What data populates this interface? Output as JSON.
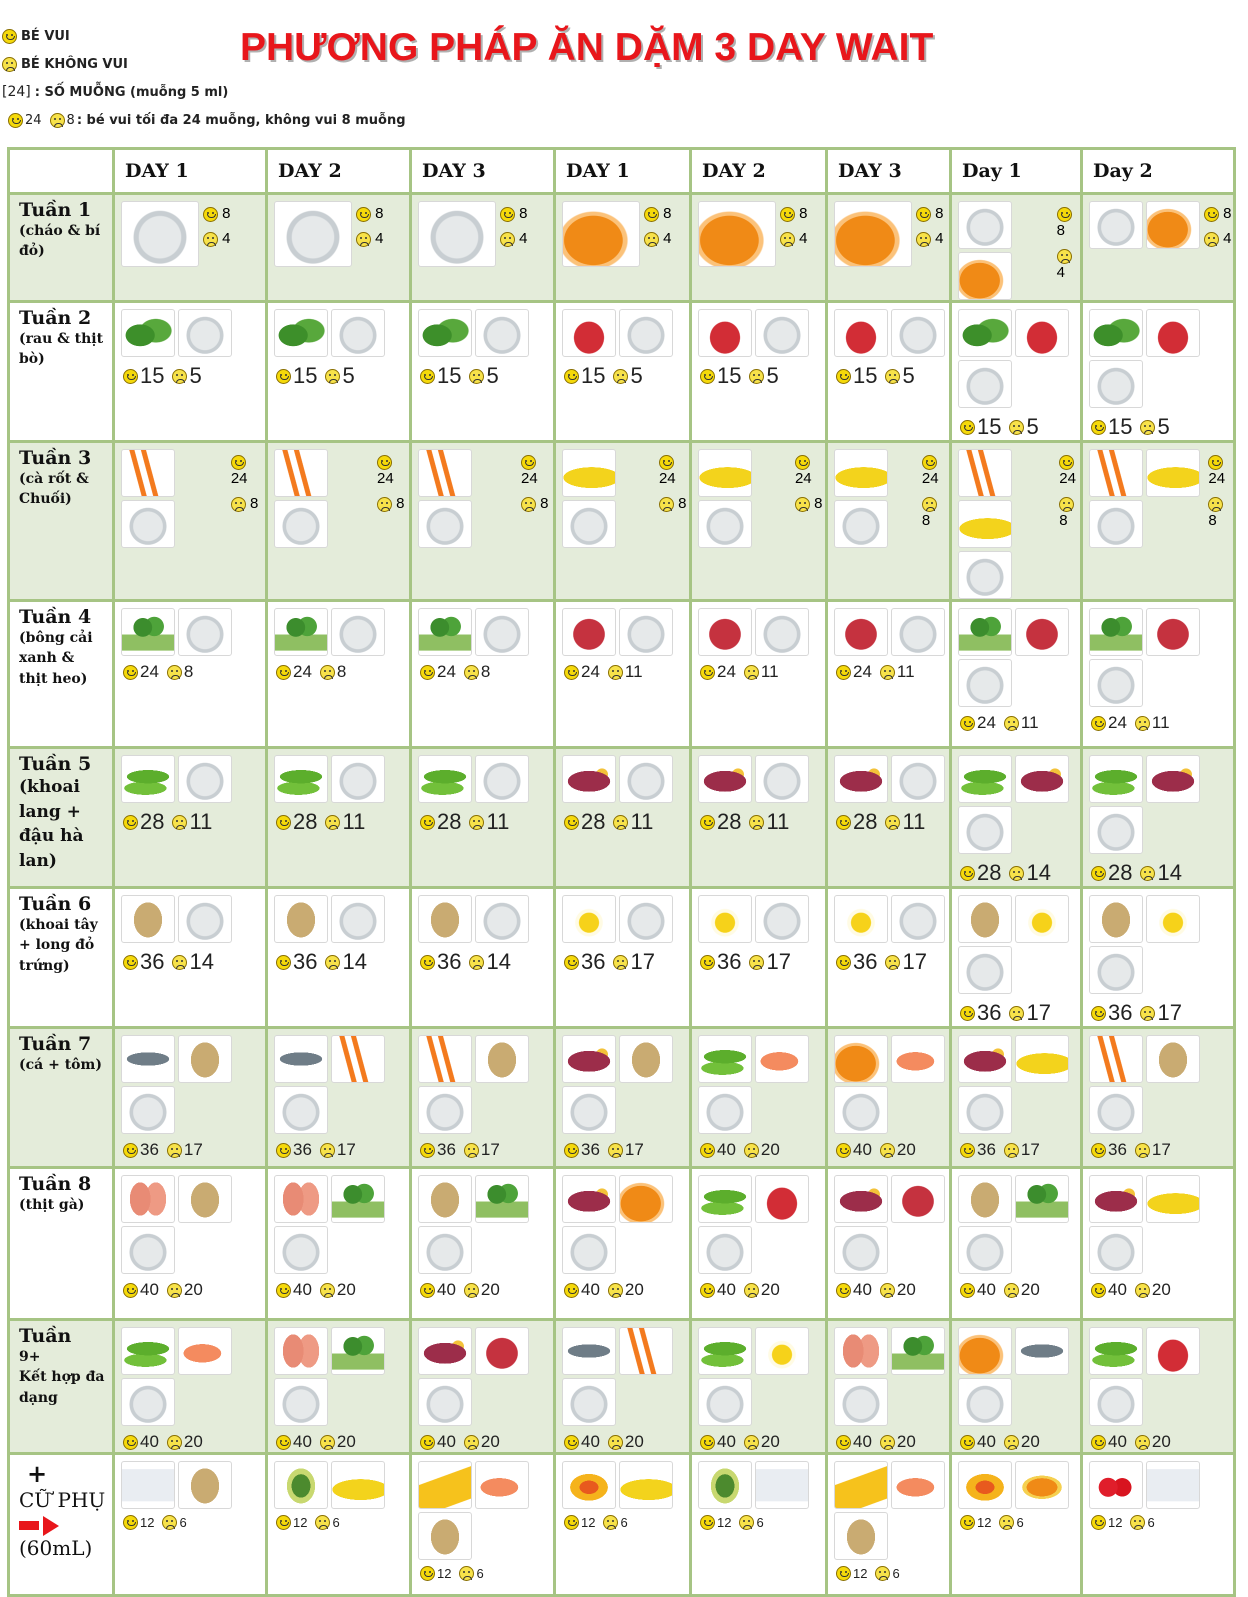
{
  "legend": {
    "happy": "BÉ VUI",
    "unhappy": "BÉ KHÔNG VUI",
    "spoon_code": "[24]",
    "spoon_text": ": SỐ MUỖNG (muỗng 5 ml)",
    "ex_happy": "24",
    "ex_unhappy": "8",
    "ex_text": ": bé vui tối đa 24 muỗng, không vui 8 muỗng"
  },
  "title": "PHƯƠNG PHÁP ĂN DẶM 3 DAY WAIT",
  "days": [
    "DAY 1",
    "DAY 2",
    "DAY 3",
    "DAY 1",
    "DAY 2",
    "DAY 3",
    "Day 1",
    "Day 2"
  ],
  "weeks": [
    {
      "name": "Tuần 1",
      "desc": "(cháo & bí đỏ)",
      "shade": true,
      "layout": "side",
      "size": "sm",
      "cells": [
        {
          "foods": [
            "porridge"
          ],
          "happy": "8",
          "unhappy": "4"
        },
        {
          "foods": [
            "porridge"
          ],
          "happy": "8",
          "unhappy": "4"
        },
        {
          "foods": [
            "porridge"
          ],
          "happy": "8",
          "unhappy": "4"
        },
        {
          "foods": [
            "pumpkin"
          ],
          "happy": "8",
          "unhappy": "4"
        },
        {
          "foods": [
            "pumpkin"
          ],
          "happy": "8",
          "unhappy": "4"
        },
        {
          "foods": [
            "pumpkin"
          ],
          "happy": "8",
          "unhappy": "4"
        },
        {
          "foods": [
            "porridge",
            "pumpkin"
          ],
          "happy": "8",
          "unhappy": "4"
        },
        {
          "foods": [
            "porridge",
            "pumpkin"
          ],
          "happy": "8",
          "unhappy": "4"
        }
      ]
    },
    {
      "name": "Tuần 2",
      "desc": "(rau & thịt bò)",
      "shade": false,
      "layout": "below",
      "size": "lg",
      "cells": [
        {
          "foods": [
            "spinach",
            "porridge"
          ],
          "happy": "15",
          "unhappy": "5"
        },
        {
          "foods": [
            "spinach",
            "porridge"
          ],
          "happy": "15",
          "unhappy": "5"
        },
        {
          "foods": [
            "spinach",
            "porridge"
          ],
          "happy": "15",
          "unhappy": "5"
        },
        {
          "foods": [
            "beef",
            "porridge"
          ],
          "happy": "15",
          "unhappy": "5"
        },
        {
          "foods": [
            "beef",
            "porridge"
          ],
          "happy": "15",
          "unhappy": "5"
        },
        {
          "foods": [
            "beef",
            "porridge"
          ],
          "happy": "15",
          "unhappy": "5"
        },
        {
          "foods": [
            "spinach",
            "beef",
            "porridge"
          ],
          "happy": "15",
          "unhappy": "5"
        },
        {
          "foods": [
            "spinach",
            "beef",
            "porridge"
          ],
          "happy": "15",
          "unhappy": "5"
        }
      ]
    },
    {
      "name": "Tuần 3",
      "desc": "(cà rốt & Chuối)",
      "shade": true,
      "layout": "side",
      "size": "sm",
      "cells": [
        {
          "foods": [
            "carrot",
            "porridge"
          ],
          "happy": "24",
          "unhappy": "8"
        },
        {
          "foods": [
            "carrot",
            "porridge"
          ],
          "happy": "24",
          "unhappy": "8"
        },
        {
          "foods": [
            "carrot",
            "porridge"
          ],
          "happy": "24",
          "unhappy": "8"
        },
        {
          "foods": [
            "banana",
            "porridge"
          ],
          "happy": "24",
          "unhappy": "8"
        },
        {
          "foods": [
            "banana",
            "porridge"
          ],
          "happy": "24",
          "unhappy": "8"
        },
        {
          "foods": [
            "banana",
            "porridge"
          ],
          "happy": "24",
          "unhappy": "8"
        },
        {
          "foods": [
            "carrot",
            "banana",
            "porridge"
          ],
          "happy": "24",
          "unhappy": "8"
        },
        {
          "foods": [
            "carrot",
            "banana",
            "porridge"
          ],
          "happy": "24",
          "unhappy": "8"
        }
      ]
    },
    {
      "name": "Tuần 4",
      "desc": "(bông cải xanh & thịt heo)",
      "shade": false,
      "layout": "below",
      "size": "md",
      "cells": [
        {
          "foods": [
            "broccoli",
            "porridge"
          ],
          "happy": "24",
          "unhappy": "8"
        },
        {
          "foods": [
            "broccoli",
            "porridge"
          ],
          "happy": "24",
          "unhappy": "8"
        },
        {
          "foods": [
            "broccoli",
            "porridge"
          ],
          "happy": "24",
          "unhappy": "8"
        },
        {
          "foods": [
            "pork",
            "porridge"
          ],
          "happy": "24",
          "unhappy": "11"
        },
        {
          "foods": [
            "pork",
            "porridge"
          ],
          "happy": "24",
          "unhappy": "11"
        },
        {
          "foods": [
            "pork",
            "porridge"
          ],
          "happy": "24",
          "unhappy": "11"
        },
        {
          "foods": [
            "broccoli",
            "pork",
            "porridge"
          ],
          "happy": "24",
          "unhappy": "11"
        },
        {
          "foods": [
            "broccoli",
            "pork",
            "porridge"
          ],
          "happy": "24",
          "unhappy": "11"
        }
      ]
    },
    {
      "name": "Tuần 5",
      "desc": "(khoai lang + đậu hà lan)",
      "shade": true,
      "layout": "below",
      "size": "lg",
      "cells": [
        {
          "foods": [
            "peas",
            "porridge"
          ],
          "happy": "28",
          "unhappy": "11"
        },
        {
          "foods": [
            "peas",
            "porridge"
          ],
          "happy": "28",
          "unhappy": "11"
        },
        {
          "foods": [
            "peas",
            "porridge"
          ],
          "happy": "28",
          "unhappy": "11"
        },
        {
          "foods": [
            "sweetpotato",
            "porridge"
          ],
          "happy": "28",
          "unhappy": "11"
        },
        {
          "foods": [
            "sweetpotato",
            "porridge"
          ],
          "happy": "28",
          "unhappy": "11"
        },
        {
          "foods": [
            "sweetpotato",
            "porridge"
          ],
          "happy": "28",
          "unhappy": "11"
        },
        {
          "foods": [
            "peas",
            "sweetpotato",
            "porridge"
          ],
          "happy": "28",
          "unhappy": "14"
        },
        {
          "foods": [
            "peas",
            "sweetpotato",
            "porridge"
          ],
          "happy": "28",
          "unhappy": "14"
        }
      ]
    },
    {
      "name": "Tuần 6",
      "desc": "(khoai tây + long đỏ trứng)",
      "shade": false,
      "layout": "below",
      "size": "lg",
      "cells": [
        {
          "foods": [
            "potato",
            "porridge"
          ],
          "happy": "36",
          "unhappy": "14"
        },
        {
          "foods": [
            "potato",
            "porridge"
          ],
          "happy": "36",
          "unhappy": "14"
        },
        {
          "foods": [
            "potato",
            "porridge"
          ],
          "happy": "36",
          "unhappy": "14"
        },
        {
          "foods": [
            "egg",
            "porridge"
          ],
          "happy": "36",
          "unhappy": "17"
        },
        {
          "foods": [
            "egg",
            "porridge"
          ],
          "happy": "36",
          "unhappy": "17"
        },
        {
          "foods": [
            "egg",
            "porridge"
          ],
          "happy": "36",
          "unhappy": "17"
        },
        {
          "foods": [
            "potato",
            "egg",
            "porridge"
          ],
          "happy": "36",
          "unhappy": "17"
        },
        {
          "foods": [
            "potato",
            "egg",
            "porridge"
          ],
          "happy": "36",
          "unhappy": "17"
        }
      ]
    },
    {
      "name": "Tuần 7",
      "desc": "(cá + tôm)",
      "shade": true,
      "layout": "below",
      "size": "md",
      "cells": [
        {
          "foods": [
            "fish",
            "potato",
            "porridge"
          ],
          "happy": "36",
          "unhappy": "17"
        },
        {
          "foods": [
            "fish",
            "carrot",
            "porridge"
          ],
          "happy": "36",
          "unhappy": "17"
        },
        {
          "foods": [
            "carrot",
            "potato",
            "porridge"
          ],
          "happy": "36",
          "unhappy": "17"
        },
        {
          "foods": [
            "sweetpotato",
            "potato",
            "porridge"
          ],
          "happy": "36",
          "unhappy": "17"
        },
        {
          "foods": [
            "peas",
            "shrimp",
            "porridge"
          ],
          "happy": "40",
          "unhappy": "20"
        },
        {
          "foods": [
            "pumpkin",
            "shrimp",
            "porridge"
          ],
          "happy": "40",
          "unhappy": "20"
        },
        {
          "foods": [
            "sweetpotato",
            "banana",
            "porridge"
          ],
          "happy": "36",
          "unhappy": "17"
        },
        {
          "foods": [
            "carrot",
            "potato",
            "porridge"
          ],
          "happy": "36",
          "unhappy": "17"
        }
      ]
    },
    {
      "name": "Tuần 8",
      "desc": "(thịt gà)",
      "shade": false,
      "layout": "below",
      "size": "md",
      "cells": [
        {
          "foods": [
            "chicken",
            "potato",
            "porridge"
          ],
          "happy": "40",
          "unhappy": "20"
        },
        {
          "foods": [
            "chicken",
            "broccoli",
            "porridge"
          ],
          "happy": "40",
          "unhappy": "20"
        },
        {
          "foods": [
            "potato",
            "broccoli",
            "porridge"
          ],
          "happy": "40",
          "unhappy": "20"
        },
        {
          "foods": [
            "sweetpotato",
            "pumpkin",
            "porridge"
          ],
          "happy": "40",
          "unhappy": "20"
        },
        {
          "foods": [
            "peas",
            "beef",
            "porridge"
          ],
          "happy": "40",
          "unhappy": "20"
        },
        {
          "foods": [
            "sweetpotato",
            "pork",
            "porridge"
          ],
          "happy": "40",
          "unhappy": "20"
        },
        {
          "foods": [
            "potato",
            "broccoli",
            "porridge"
          ],
          "happy": "40",
          "unhappy": "20"
        },
        {
          "foods": [
            "sweetpotato",
            "banana",
            "porridge"
          ],
          "happy": "40",
          "unhappy": "20"
        }
      ]
    },
    {
      "name": "Tuần",
      "desc": "9+",
      "desc2": "Kết hợp đa dạng",
      "shade": true,
      "layout": "below",
      "size": "md",
      "cells": [
        {
          "foods": [
            "peas",
            "shrimp",
            "porridge"
          ],
          "happy": "40",
          "unhappy": "20"
        },
        {
          "foods": [
            "chicken",
            "broccoli",
            "porridge"
          ],
          "happy": "40",
          "unhappy": "20"
        },
        {
          "foods": [
            "sweetpotato",
            "pork",
            "porridge"
          ],
          "happy": "40",
          "unhappy": "20"
        },
        {
          "foods": [
            "fish",
            "carrot",
            "porridge"
          ],
          "happy": "40",
          "unhappy": "20"
        },
        {
          "foods": [
            "peas",
            "egg",
            "porridge"
          ],
          "happy": "40",
          "unhappy": "20"
        },
        {
          "foods": [
            "chicken",
            "broccoli",
            "porridge"
          ],
          "happy": "40",
          "unhappy": "20"
        },
        {
          "foods": [
            "pumpkin",
            "fish",
            "porridge"
          ],
          "happy": "40",
          "unhappy": "20"
        },
        {
          "foods": [
            "peas",
            "beef",
            "porridge"
          ],
          "happy": "40",
          "unhappy": "20"
        }
      ]
    },
    {
      "name": "+",
      "desc": "CỮ PHỤ",
      "desc2": "(60mL)",
      "shade": false,
      "layout": "below",
      "size": "sm",
      "snack": true,
      "cells": [
        {
          "foods": [
            "yogurt",
            "potato"
          ],
          "happy": "12",
          "unhappy": "6"
        },
        {
          "foods": [
            "avocado",
            "banana"
          ],
          "happy": "12",
          "unhappy": "6"
        },
        {
          "foods": [
            "cheese",
            "shrimp",
            "potato"
          ],
          "happy": "12",
          "unhappy": "6"
        },
        {
          "foods": [
            "mango",
            "banana"
          ],
          "happy": "12",
          "unhappy": "6"
        },
        {
          "foods": [
            "avocado",
            "yogurt"
          ],
          "happy": "12",
          "unhappy": "6"
        },
        {
          "foods": [
            "cheese",
            "shrimp",
            "potato"
          ],
          "happy": "12",
          "unhappy": "6"
        },
        {
          "foods": [
            "mango",
            "papaya"
          ],
          "happy": "12",
          "unhappy": "6"
        },
        {
          "foods": [
            "strawberry",
            "yogurt"
          ],
          "happy": "12",
          "unhappy": "6"
        }
      ]
    }
  ]
}
